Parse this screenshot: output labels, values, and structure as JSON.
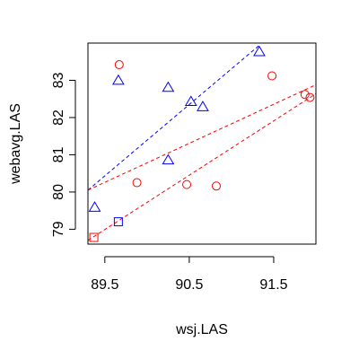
{
  "chart_data": {
    "type": "scatter",
    "title": "",
    "xlabel": "wsj.LAS",
    "ylabel": "webavg.LAS",
    "xlim": [
      89.3,
      92.0
    ],
    "ylim": [
      78.6,
      84.0
    ],
    "x_ticks": [
      89.5,
      90.5,
      91.5
    ],
    "x_tick_labels": [
      "89.5",
      "90.5",
      "91.5"
    ],
    "y_ticks": [
      79,
      80,
      81,
      82,
      83
    ],
    "y_tick_labels": [
      "79",
      "80",
      "81",
      "82",
      "83"
    ],
    "grid": false,
    "legend": false,
    "series": [
      {
        "marker": "circle",
        "color": "#ff0000",
        "points": [
          {
            "x": 89.67,
            "y": 83.42
          },
          {
            "x": 89.88,
            "y": 80.25
          },
          {
            "x": 90.47,
            "y": 80.2
          },
          {
            "x": 90.82,
            "y": 80.16
          },
          {
            "x": 91.48,
            "y": 83.12
          },
          {
            "x": 91.87,
            "y": 82.62
          },
          {
            "x": 91.93,
            "y": 82.54
          }
        ]
      },
      {
        "marker": "triangle",
        "color": "#0000ff",
        "points": [
          {
            "x": 89.38,
            "y": 79.58
          },
          {
            "x": 89.66,
            "y": 82.99
          },
          {
            "x": 90.25,
            "y": 82.8
          },
          {
            "x": 90.25,
            "y": 80.85
          },
          {
            "x": 90.52,
            "y": 82.42
          },
          {
            "x": 90.66,
            "y": 82.28
          },
          {
            "x": 91.33,
            "y": 83.76
          }
        ]
      },
      {
        "marker": "square",
        "color": "#0000ff",
        "points": [
          {
            "x": 89.66,
            "y": 79.2
          }
        ]
      },
      {
        "marker": "square",
        "color": "#ff0000",
        "points": [
          {
            "x": 89.37,
            "y": 78.78
          }
        ]
      }
    ],
    "lines": [
      {
        "color": "#0000ff",
        "dash": true,
        "x": [
          89.3,
          91.34
        ],
        "y": [
          80.05,
          83.96
        ]
      },
      {
        "color": "#ff0000",
        "dash": true,
        "x": [
          89.3,
          92.0
        ],
        "y": [
          80.05,
          82.88
        ]
      },
      {
        "color": "#ff0000",
        "dash": true,
        "x": [
          89.3,
          92.0
        ],
        "y": [
          78.7,
          82.64
        ]
      }
    ]
  }
}
